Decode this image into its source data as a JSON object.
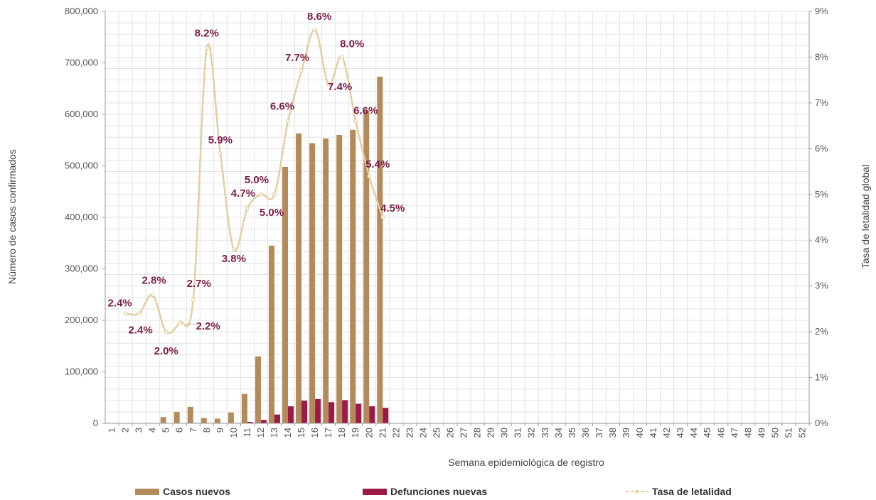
{
  "chart_data": {
    "type": "bar",
    "xlabel": "Semana epidemiológica de registro",
    "ylabel": "Número de casos confirmados",
    "y2label": "Tasa de letalidad global",
    "ylim": [
      0,
      800000
    ],
    "y2lim": [
      0,
      9
    ],
    "y_ticks": [
      "0",
      "100,000",
      "200,000",
      "300,000",
      "400,000",
      "500,000",
      "600,000",
      "700,000",
      "800,000"
    ],
    "y2_ticks": [
      "0%",
      "1%",
      "2%",
      "3%",
      "4%",
      "5%",
      "6%",
      "7%",
      "8%",
      "9%"
    ],
    "grid": true,
    "legend_position": "bottom",
    "categories": [
      "1",
      "2",
      "3",
      "4",
      "5",
      "6",
      "7",
      "8",
      "9",
      "10",
      "11",
      "12",
      "13",
      "14",
      "15",
      "16",
      "17",
      "18",
      "19",
      "20",
      "21",
      "22",
      "23",
      "24",
      "25",
      "26",
      "27",
      "28",
      "29",
      "30",
      "31",
      "32",
      "33",
      "34",
      "35",
      "36",
      "37",
      "38",
      "39",
      "40",
      "41",
      "42",
      "43",
      "44",
      "45",
      "46",
      "47",
      "48",
      "49",
      "50",
      "51",
      "52"
    ],
    "series": [
      {
        "name": "Casos nuevos",
        "kind": "bar",
        "color": "#b58a5a",
        "values": [
          0,
          0,
          0,
          1000,
          12000,
          22000,
          32000,
          10000,
          9000,
          21000,
          57000,
          130000,
          345000,
          498000,
          563000,
          544000,
          553000,
          560000,
          570000,
          607000,
          673000,
          null,
          null,
          null,
          null,
          null,
          null,
          null,
          null,
          null,
          null,
          null,
          null,
          null,
          null,
          null,
          null,
          null,
          null,
          null,
          null,
          null,
          null,
          null,
          null,
          null,
          null,
          null,
          null,
          null,
          null,
          null
        ]
      },
      {
        "name": "Defunciones nuevas",
        "kind": "bar",
        "color": "#9b1b45",
        "values": [
          0,
          0,
          0,
          0,
          200,
          500,
          900,
          800,
          500,
          800,
          2700,
          6500,
          17000,
          33000,
          44000,
          47000,
          41000,
          45000,
          38000,
          33000,
          30000,
          null,
          null,
          null,
          null,
          null,
          null,
          null,
          null,
          null,
          null,
          null,
          null,
          null,
          null,
          null,
          null,
          null,
          null,
          null,
          null,
          null,
          null,
          null,
          null,
          null,
          null,
          null,
          null,
          null,
          null,
          null
        ]
      },
      {
        "name": "Tasa de letalidad",
        "kind": "line",
        "axis": "right",
        "color": "#e3cfa0",
        "x": [
          2,
          3,
          4,
          5,
          6,
          7,
          8,
          9,
          10,
          11,
          12,
          13,
          14,
          15,
          16,
          17,
          18,
          19,
          20,
          21
        ],
        "values": [
          2.4,
          2.4,
          2.8,
          2.0,
          2.2,
          2.7,
          8.2,
          5.9,
          3.8,
          4.7,
          5.0,
          5.0,
          6.6,
          7.7,
          8.6,
          7.4,
          8.0,
          6.6,
          5.4,
          4.5
        ],
        "labels": [
          "2.4%",
          "2.4%",
          "2.8%",
          "2.0%",
          "2.2%",
          "2.7%",
          "8.2%",
          "5.9%",
          "3.8%",
          "4.7%",
          "5.0%",
          "5.0%",
          "6.6%",
          "7.7%",
          "8.6%",
          "7.4%",
          "8.0%",
          "6.6%",
          "5.4%",
          "4.5%"
        ]
      }
    ],
    "colors": {
      "label": "#7b1c48",
      "grid": "#e3e3e3",
      "axis": "#999999"
    }
  }
}
